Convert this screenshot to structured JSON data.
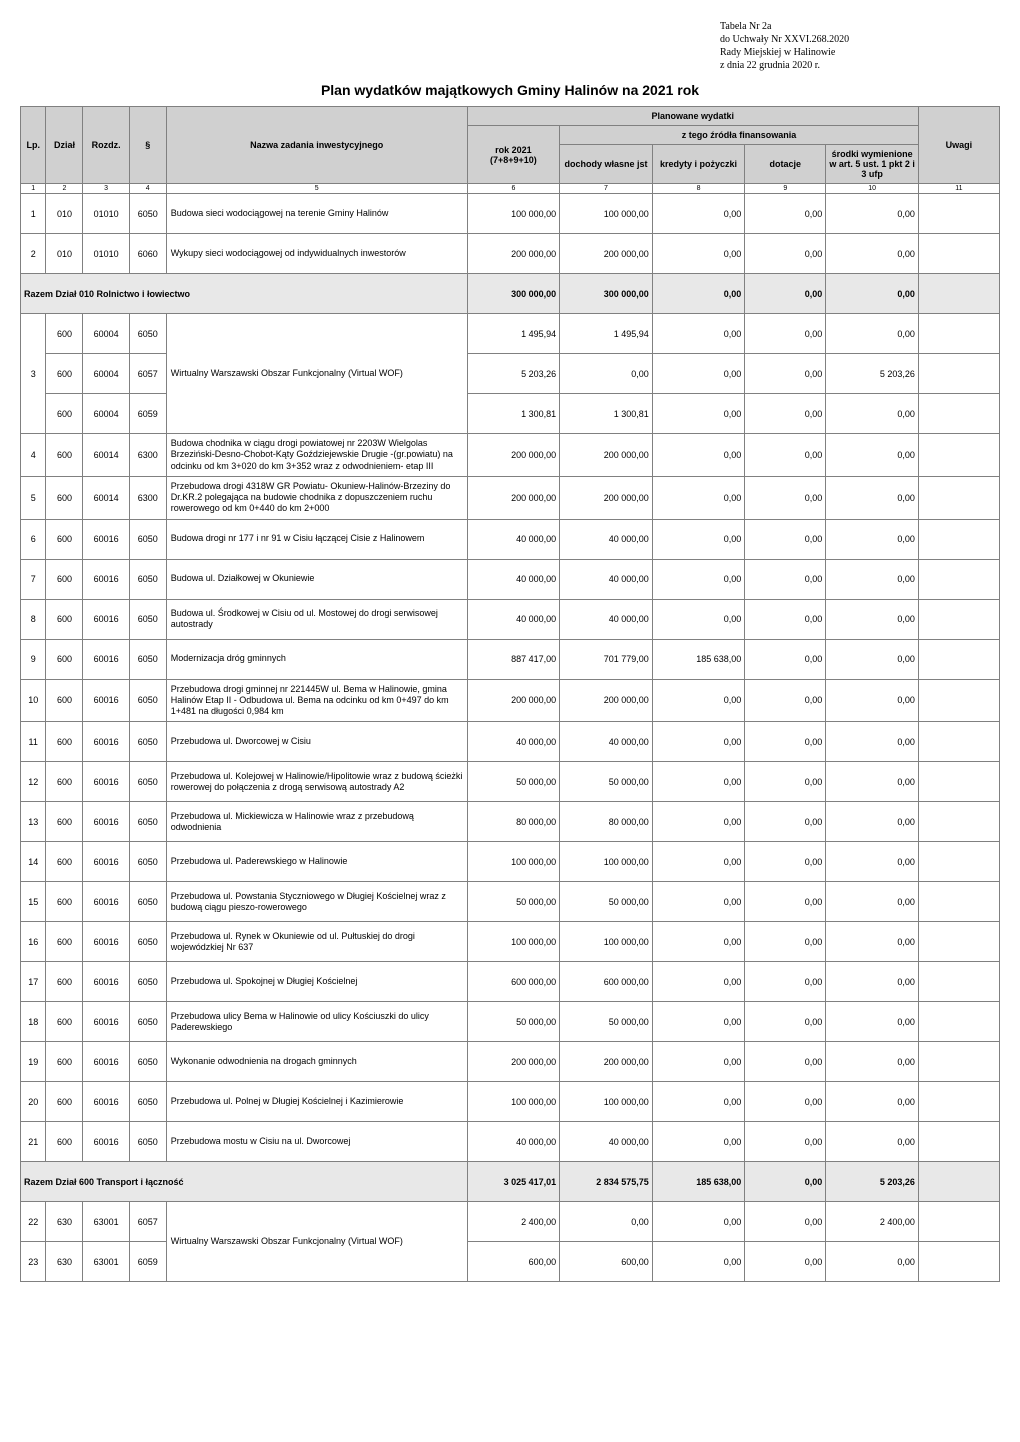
{
  "header": {
    "line1": "Tabela Nr 2a",
    "line2": "do Uchwały Nr XXVI.268.2020",
    "line3": "Rady Miejskiej w Halinowie",
    "line4": "z dnia 22 grudnia 2020 r."
  },
  "title": "Plan wydatków majątkowych Gminy Halinów na 2021 rok",
  "columns": {
    "lp": "Lp.",
    "dzial": "Dział",
    "rozdz": "Rozdz.",
    "par": "§",
    "nazwa": "Nazwa zadania inwestycyjnego",
    "planowane": "Planowane wydatki",
    "rok2021": "rok 2021 (7+8+9+10)",
    "ztego": "z tego źródła finansowania",
    "dochody": "dochody własne jst",
    "kredyty": "kredyty i pożyczki",
    "dotacje": "dotacje",
    "srodki": "środki wymienione w art. 5 ust. 1 pkt 2 i 3 ufp",
    "uwagi": "Uwagi"
  },
  "numrow": [
    "1",
    "2",
    "3",
    "4",
    "5",
    "6",
    "7",
    "8",
    "9",
    "10",
    "11"
  ],
  "rows": [
    {
      "lp": "1",
      "dzial": "010",
      "rozdz": "01010",
      "par": "6050",
      "nazwa": "Budowa sieci wodociągowej na terenie Gminy Halinów",
      "rok": "100 000,00",
      "dochody": "100 000,00",
      "kredyty": "0,00",
      "dotacje": "0,00",
      "srodki": "0,00",
      "uwagi": ""
    },
    {
      "lp": "2",
      "dzial": "010",
      "rozdz": "01010",
      "par": "6060",
      "nazwa": "Wykupy sieci wodociągowej od indywidualnych inwestorów",
      "rok": "200 000,00",
      "dochody": "200 000,00",
      "kredyty": "0,00",
      "dotacje": "0,00",
      "srodki": "0,00",
      "uwagi": ""
    }
  ],
  "sum010": {
    "label": "Razem Dział 010 Rolnictwo i łowiectwo",
    "rok": "300 000,00",
    "dochody": "300 000,00",
    "kredyty": "0,00",
    "dotacje": "0,00",
    "srodki": "0,00"
  },
  "wof": {
    "nazwa": "Wirtualny Warszawski Obszar Funkcjonalny (Virtual WOF)",
    "r1": {
      "dzial": "600",
      "rozdz": "60004",
      "par": "6050",
      "rok": "1 495,94",
      "dochody": "1 495,94",
      "kredyty": "0,00",
      "dotacje": "0,00",
      "srodki": "0,00"
    },
    "r2": {
      "lp": "3",
      "dzial": "600",
      "rozdz": "60004",
      "par": "6057",
      "rok": "5 203,26",
      "dochody": "0,00",
      "kredyty": "0,00",
      "dotacje": "0,00",
      "srodki": "5 203,26"
    },
    "r3": {
      "dzial": "600",
      "rozdz": "60004",
      "par": "6059",
      "rok": "1 300,81",
      "dochody": "1 300,81",
      "kredyty": "0,00",
      "dotacje": "0,00",
      "srodki": "0,00"
    }
  },
  "rows600": [
    {
      "lp": "4",
      "dzial": "600",
      "rozdz": "60014",
      "par": "6300",
      "nazwa": "Budowa chodnika w ciągu drogi powiatowej nr 2203W Wielgolas Brzeziński-Desno-Chobot-Kąty Goździejewskie Drugie -(gr.powiatu) na odcinku od km 3+020 do km 3+352 wraz z odwodnieniem- etap III",
      "rok": "200 000,00",
      "dochody": "200 000,00",
      "kredyty": "0,00",
      "dotacje": "0,00",
      "srodki": "0,00"
    },
    {
      "lp": "5",
      "dzial": "600",
      "rozdz": "60014",
      "par": "6300",
      "nazwa": "Przebudowa drogi 4318W GR Powiatu- Okuniew-Halinów-Brzeziny do Dr.KR.2 polegająca na budowie chodnika z dopuszczeniem ruchu rowerowego od km 0+440 do km 2+000",
      "rok": "200 000,00",
      "dochody": "200 000,00",
      "kredyty": "0,00",
      "dotacje": "0,00",
      "srodki": "0,00"
    },
    {
      "lp": "6",
      "dzial": "600",
      "rozdz": "60016",
      "par": "6050",
      "nazwa": "Budowa drogi nr 177 i nr 91 w Cisiu łączącej Cisie z Halinowem",
      "rok": "40 000,00",
      "dochody": "40 000,00",
      "kredyty": "0,00",
      "dotacje": "0,00",
      "srodki": "0,00"
    },
    {
      "lp": "7",
      "dzial": "600",
      "rozdz": "60016",
      "par": "6050",
      "nazwa": "Budowa ul. Działkowej w Okuniewie",
      "rok": "40 000,00",
      "dochody": "40 000,00",
      "kredyty": "0,00",
      "dotacje": "0,00",
      "srodki": "0,00"
    },
    {
      "lp": "8",
      "dzial": "600",
      "rozdz": "60016",
      "par": "6050",
      "nazwa": "Budowa ul. Środkowej w Cisiu od ul. Mostowej do drogi serwisowej autostrady",
      "rok": "40 000,00",
      "dochody": "40 000,00",
      "kredyty": "0,00",
      "dotacje": "0,00",
      "srodki": "0,00"
    },
    {
      "lp": "9",
      "dzial": "600",
      "rozdz": "60016",
      "par": "6050",
      "nazwa": "Modernizacja dróg gminnych",
      "rok": "887 417,00",
      "dochody": "701 779,00",
      "kredyty": "185 638,00",
      "dotacje": "0,00",
      "srodki": "0,00"
    },
    {
      "lp": "10",
      "dzial": "600",
      "rozdz": "60016",
      "par": "6050",
      "nazwa": "Przebudowa drogi gminnej nr 221445W ul. Bema w Halinowie, gmina Halinów Etap II - Odbudowa ul. Bema na odcinku od km 0+497 do km 1+481 na długości 0,984 km",
      "rok": "200 000,00",
      "dochody": "200 000,00",
      "kredyty": "0,00",
      "dotacje": "0,00",
      "srodki": "0,00"
    },
    {
      "lp": "11",
      "dzial": "600",
      "rozdz": "60016",
      "par": "6050",
      "nazwa": "Przebudowa ul. Dworcowej w Cisiu",
      "rok": "40 000,00",
      "dochody": "40 000,00",
      "kredyty": "0,00",
      "dotacje": "0,00",
      "srodki": "0,00"
    },
    {
      "lp": "12",
      "dzial": "600",
      "rozdz": "60016",
      "par": "6050",
      "nazwa": "Przebudowa ul. Kolejowej w Halinowie/Hipolitowie wraz z budową ścieżki rowerowej do połączenia z drogą serwisową autostrady A2",
      "rok": "50 000,00",
      "dochody": "50 000,00",
      "kredyty": "0,00",
      "dotacje": "0,00",
      "srodki": "0,00"
    },
    {
      "lp": "13",
      "dzial": "600",
      "rozdz": "60016",
      "par": "6050",
      "nazwa": "Przebudowa ul. Mickiewicza w Halinowie wraz z przebudową odwodnienia",
      "rok": "80 000,00",
      "dochody": "80 000,00",
      "kredyty": "0,00",
      "dotacje": "0,00",
      "srodki": "0,00"
    },
    {
      "lp": "14",
      "dzial": "600",
      "rozdz": "60016",
      "par": "6050",
      "nazwa": "Przebudowa ul. Paderewskiego w Halinowie",
      "rok": "100 000,00",
      "dochody": "100 000,00",
      "kredyty": "0,00",
      "dotacje": "0,00",
      "srodki": "0,00"
    },
    {
      "lp": "15",
      "dzial": "600",
      "rozdz": "60016",
      "par": "6050",
      "nazwa": "Przebudowa ul. Powstania Styczniowego w Długiej Kościelnej wraz z budową ciągu pieszo-rowerowego",
      "rok": "50 000,00",
      "dochody": "50 000,00",
      "kredyty": "0,00",
      "dotacje": "0,00",
      "srodki": "0,00"
    },
    {
      "lp": "16",
      "dzial": "600",
      "rozdz": "60016",
      "par": "6050",
      "nazwa": "Przebudowa ul. Rynek w Okuniewie od ul. Pułtuskiej do drogi wojewódzkiej Nr 637",
      "rok": "100 000,00",
      "dochody": "100 000,00",
      "kredyty": "0,00",
      "dotacje": "0,00",
      "srodki": "0,00"
    },
    {
      "lp": "17",
      "dzial": "600",
      "rozdz": "60016",
      "par": "6050",
      "nazwa": "Przebudowa ul. Spokojnej w Długiej Kościelnej",
      "rok": "600 000,00",
      "dochody": "600 000,00",
      "kredyty": "0,00",
      "dotacje": "0,00",
      "srodki": "0,00"
    },
    {
      "lp": "18",
      "dzial": "600",
      "rozdz": "60016",
      "par": "6050",
      "nazwa": "Przebudowa ulicy Bema w Halinowie od ulicy Kościuszki do ulicy Paderewskiego",
      "rok": "50 000,00",
      "dochody": "50 000,00",
      "kredyty": "0,00",
      "dotacje": "0,00",
      "srodki": "0,00"
    },
    {
      "lp": "19",
      "dzial": "600",
      "rozdz": "60016",
      "par": "6050",
      "nazwa": "Wykonanie odwodnienia na drogach gminnych",
      "rok": "200 000,00",
      "dochody": "200 000,00",
      "kredyty": "0,00",
      "dotacje": "0,00",
      "srodki": "0,00"
    },
    {
      "lp": "20",
      "dzial": "600",
      "rozdz": "60016",
      "par": "6050",
      "nazwa": "Przebudowa ul. Polnej w Długiej Kościelnej i Kazimierowie",
      "rok": "100 000,00",
      "dochody": "100 000,00",
      "kredyty": "0,00",
      "dotacje": "0,00",
      "srodki": "0,00"
    },
    {
      "lp": "21",
      "dzial": "600",
      "rozdz": "60016",
      "par": "6050",
      "nazwa": "Przebudowa mostu w Cisiu na ul. Dworcowej",
      "rok": "40 000,00",
      "dochody": "40 000,00",
      "kredyty": "0,00",
      "dotacje": "0,00",
      "srodki": "0,00"
    }
  ],
  "sum600": {
    "label": "Razem Dział 600 Transport i łączność",
    "rok": "3 025 417,01",
    "dochody": "2 834 575,75",
    "kredyty": "185 638,00",
    "dotacje": "0,00",
    "srodki": "5 203,26"
  },
  "wof2": {
    "nazwa": "Wirtualny Warszawski Obszar Funkcjonalny (Virtual WOF)",
    "r1": {
      "lp": "22",
      "dzial": "630",
      "rozdz": "63001",
      "par": "6057",
      "rok": "2 400,00",
      "dochody": "0,00",
      "kredyty": "0,00",
      "dotacje": "0,00",
      "srodki": "2 400,00"
    },
    "r2": {
      "lp": "23",
      "dzial": "630",
      "rozdz": "63001",
      "par": "6059",
      "rok": "600,00",
      "dochody": "600,00",
      "kredyty": "0,00",
      "dotacje": "0,00",
      "srodki": "0,00"
    }
  }
}
